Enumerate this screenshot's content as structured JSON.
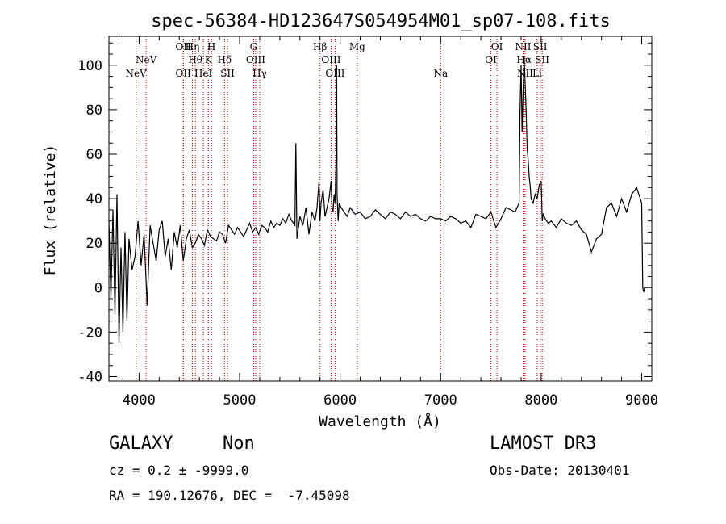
{
  "chart_data": {
    "type": "line",
    "title": "spec-56384-HD123647S054954M01_sp07-108.fits",
    "xlabel": "Wavelength (Å)",
    "ylabel": "Flux (relative)",
    "xlim": [
      3700,
      9100
    ],
    "ylim": [
      -42,
      113
    ],
    "xticks": [
      4000,
      5000,
      6000,
      7000,
      8000,
      9000
    ],
    "yticks": [
      -40,
      -20,
      0,
      20,
      40,
      60,
      80,
      100
    ],
    "grid": false,
    "legend": "none",
    "series_color": "#000000",
    "line_marker_color": "#cc0000",
    "line_markers": [
      {
        "label": "NeV",
        "x": 3970,
        "row": 3
      },
      {
        "label": "NeV",
        "x": 4070,
        "row": 2
      },
      {
        "label": "OII",
        "x": 4440,
        "row": 1
      },
      {
        "label": "OII",
        "x": 4440,
        "row": 3
      },
      {
        "label": "Hη",
        "x": 4530,
        "row": 1
      },
      {
        "label": "Hθ",
        "x": 4560,
        "row": 2
      },
      {
        "label": "HeI",
        "x": 4640,
        "row": 3
      },
      {
        "label": "H",
        "x": 4720,
        "row": 1
      },
      {
        "label": "K",
        "x": 4690,
        "row": 2
      },
      {
        "label": "Hδ",
        "x": 4850,
        "row": 2
      },
      {
        "label": "SII",
        "x": 4880,
        "row": 3
      },
      {
        "label": "G",
        "x": 5140,
        "row": 1
      },
      {
        "label": "OIII",
        "x": 5160,
        "row": 2
      },
      {
        "label": "Hγ",
        "x": 5200,
        "row": 3
      },
      {
        "label": "Hβ",
        "x": 5800,
        "row": 1
      },
      {
        "label": "OIII",
        "x": 5910,
        "row": 2
      },
      {
        "label": "OIII",
        "x": 5950,
        "row": 3
      },
      {
        "label": "Mg",
        "x": 6170,
        "row": 1
      },
      {
        "label": "Na",
        "x": 7000,
        "row": 3
      },
      {
        "label": "OI",
        "x": 7560,
        "row": 1
      },
      {
        "label": "OI",
        "x": 7500,
        "row": 2
      },
      {
        "label": "NII",
        "x": 7820,
        "row": 1
      },
      {
        "label": "Hα",
        "x": 7830,
        "row": 2
      },
      {
        "label": "NII",
        "x": 7840,
        "row": 3
      },
      {
        "label": "SII",
        "x": 7990,
        "row": 1
      },
      {
        "label": "SII",
        "x": 8010,
        "row": 2
      },
      {
        "label": "Li",
        "x": 7960,
        "row": 3
      }
    ],
    "series": [
      {
        "x": [
          3700,
          3720,
          3740,
          3760,
          3780,
          3800,
          3820,
          3840,
          3860,
          3880,
          3900,
          3930,
          3960,
          3990,
          4020,
          4050,
          4080,
          4110,
          4140,
          4170,
          4200,
          4230,
          4260,
          4290,
          4320,
          4350,
          4380,
          4410,
          4440,
          4470,
          4500,
          4530,
          4560,
          4590,
          4620,
          4650,
          4680,
          4710,
          4740,
          4770,
          4800,
          4830,
          4860,
          4890,
          4920,
          4950,
          4980,
          5010,
          5040,
          5070,
          5100,
          5130,
          5160,
          5190,
          5220,
          5250,
          5280,
          5310,
          5340,
          5370,
          5400,
          5430,
          5460,
          5490,
          5520,
          5550,
          5560,
          5570,
          5600,
          5630,
          5660,
          5690,
          5720,
          5750,
          5770,
          5790,
          5800,
          5810,
          5830,
          5850,
          5870,
          5890,
          5910,
          5920,
          5930,
          5940,
          5950,
          5960,
          5965,
          5970,
          5980,
          5990,
          6010,
          6040,
          6070,
          6100,
          6150,
          6200,
          6250,
          6300,
          6350,
          6400,
          6450,
          6500,
          6550,
          6600,
          6650,
          6700,
          6750,
          6800,
          6850,
          6900,
          6950,
          7000,
          7050,
          7100,
          7150,
          7200,
          7250,
          7300,
          7350,
          7400,
          7450,
          7500,
          7550,
          7600,
          7650,
          7700,
          7740,
          7760,
          7780,
          7790,
          7800,
          7810,
          7820,
          7830,
          7840,
          7850,
          7860,
          7870,
          7880,
          7890,
          7900,
          7920,
          7940,
          7960,
          7980,
          8000,
          8010,
          8020,
          8040,
          8070,
          8100,
          8150,
          8200,
          8250,
          8300,
          8350,
          8400,
          8450,
          8500,
          8550,
          8600,
          8650,
          8700,
          8750,
          8800,
          8850,
          8900,
          8950,
          9000,
          9010,
          9020,
          9030
        ],
        "values": [
          30,
          -5,
          35,
          -12,
          42,
          -25,
          18,
          -20,
          25,
          -15,
          22,
          8,
          14,
          30,
          10,
          24,
          -8,
          28,
          20,
          12,
          26,
          30,
          14,
          22,
          8,
          25,
          18,
          28,
          12,
          22,
          26,
          18,
          20,
          24,
          22,
          19,
          26,
          23,
          22,
          21,
          25,
          24,
          20,
          28,
          26,
          24,
          27,
          25,
          23,
          26,
          29,
          25,
          27,
          24,
          28,
          27,
          25,
          30,
          27,
          29,
          28,
          31,
          29,
          33,
          30,
          28,
          65,
          22,
          32,
          28,
          36,
          24,
          34,
          30,
          36,
          48,
          30,
          38,
          44,
          32,
          36,
          40,
          48,
          36,
          34,
          42,
          38,
          60,
          100,
          42,
          30,
          38,
          36,
          34,
          32,
          36,
          33,
          34,
          31,
          32,
          35,
          33,
          31,
          34,
          33,
          31,
          34,
          32,
          33,
          31,
          30,
          32,
          31,
          31,
          30,
          32,
          31,
          29,
          30,
          27,
          33,
          32,
          31,
          34,
          27,
          31,
          36,
          35,
          34,
          36,
          38,
          80,
          100,
          70,
          88,
          104,
          92,
          80,
          62,
          58,
          50,
          46,
          40,
          38,
          42,
          40,
          46,
          48,
          30,
          33,
          31,
          29,
          30,
          27,
          31,
          29,
          28,
          30,
          26,
          24,
          16,
          22,
          24,
          36,
          38,
          32,
          40,
          34,
          42,
          45,
          38,
          0,
          -2,
          0
        ]
      }
    ]
  },
  "info": {
    "class_label": "GALAXY",
    "subclass_label": "Non",
    "survey": "LAMOST DR3",
    "redshift_line": "cz = 0.2 ± -9999.0",
    "obs_date": "Obs-Date: 20130401",
    "coords": "RA = 190.12676, DEC =  -7.45098"
  }
}
